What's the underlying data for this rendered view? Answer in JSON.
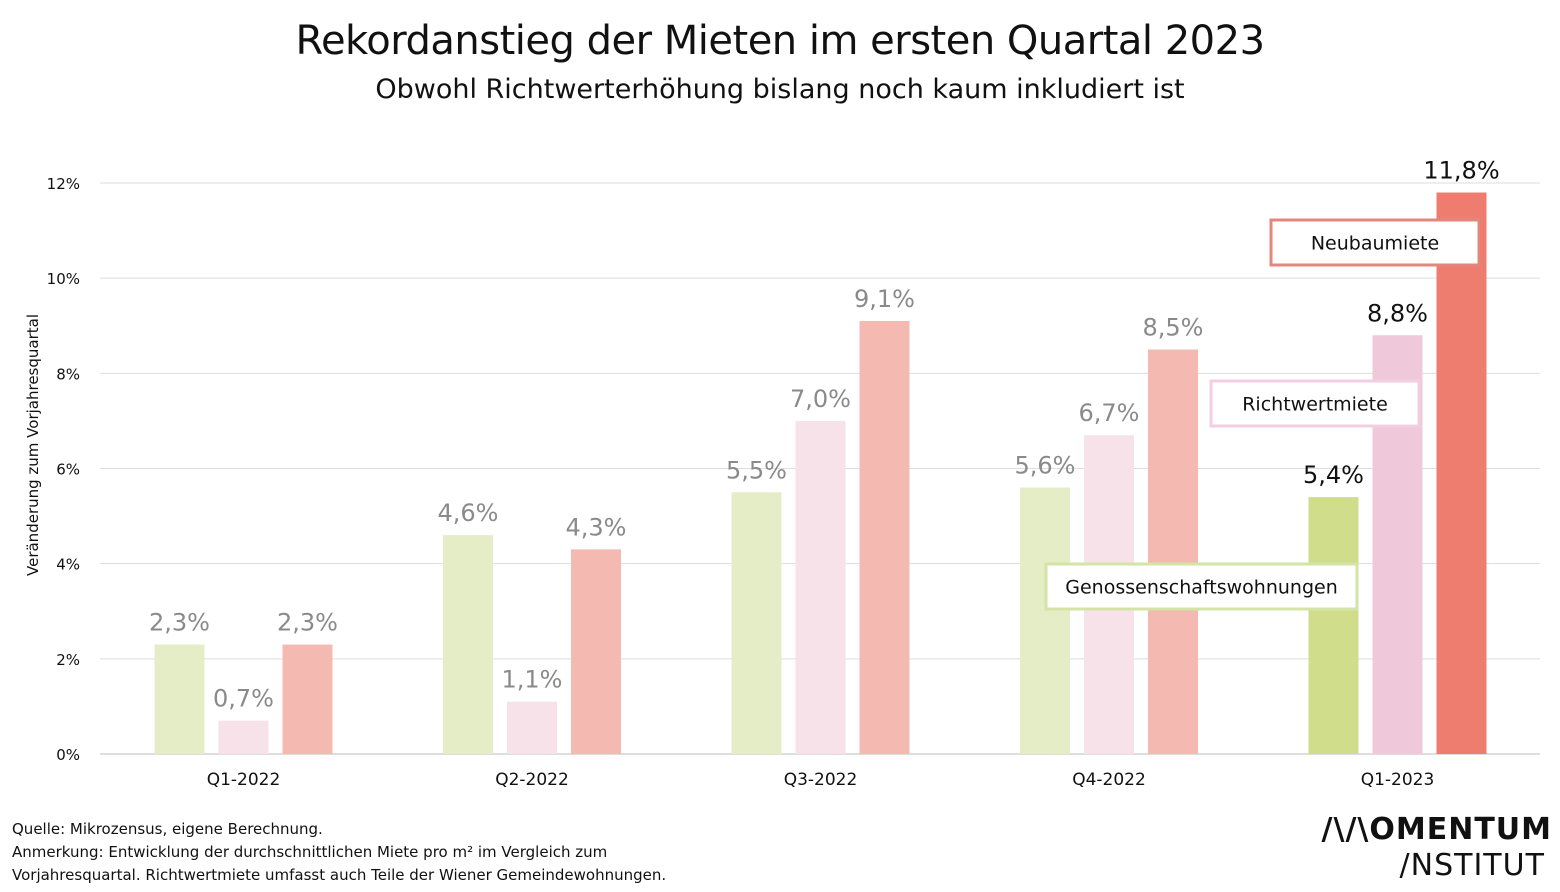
{
  "header": {
    "title": "Rekordanstieg der Mieten im ersten Quartal 2023",
    "subtitle": "Obwohl Richtwerterhöhung bislang noch kaum inkludiert ist"
  },
  "chart_data": {
    "type": "bar",
    "ylabel": "Veränderung zum Vorjahresquartal",
    "ylim": [
      0,
      12
    ],
    "yticks": [
      0,
      2,
      4,
      6,
      8,
      10,
      12
    ],
    "ytick_labels": [
      "0%",
      "2%",
      "4%",
      "6%",
      "8%",
      "10%",
      "12%"
    ],
    "grid": true,
    "categories": [
      "Q1-2022",
      "Q2-2022",
      "Q3-2022",
      "Q4-2022",
      "Q1-2023"
    ],
    "series": [
      {
        "name": "Genossenschaftswohnungen",
        "values": [
          2.3,
          4.6,
          5.5,
          5.6,
          5.4
        ],
        "labels": [
          "2,3%",
          "4,6%",
          "5,5%",
          "5,6%",
          "5,4%"
        ],
        "color_faded": "#e4edc6",
        "color_highlight": "#d0de8c"
      },
      {
        "name": "Richtwertmiete",
        "values": [
          0.7,
          1.1,
          7.0,
          6.7,
          8.8
        ],
        "labels": [
          "0,7%",
          "1,1%",
          "7,0%",
          "6,7%",
          "8,8%"
        ],
        "color_faded": "#f7e2ea",
        "color_highlight": "#efc8d9"
      },
      {
        "name": "Neubaumiete",
        "values": [
          2.3,
          4.3,
          9.1,
          8.5,
          11.8
        ],
        "labels": [
          "2,3%",
          "4,3%",
          "9,1%",
          "8,5%",
          "11,8%"
        ],
        "color_faded": "#f4b9b1",
        "color_highlight": "#ee7c6f"
      }
    ],
    "highlight_category": "Q1-2023",
    "label_color_faded": "#8a8a8a",
    "label_color_highlight": "#111111",
    "legend_placement": "inline callouts next to Q1-2023 bars",
    "legend": [
      {
        "text": "Neubaumiete",
        "border": "#e2877c"
      },
      {
        "text": "Richtwertmiete",
        "border": "#f2cfe0"
      },
      {
        "text": "Genossenschaftswohnungen",
        "border": "#d4e3a6"
      }
    ]
  },
  "footer": {
    "source": "Quelle: Mikrozensus, eigene Berechnung.",
    "note_line1": "Anmerkung: Entwicklung der durchschnittlichen Miete pro m² im Vergleich zum",
    "note_line2": "Vorjahresquartal. Richtwertmiete umfasst auch Teile der Wiener Gemeindewohnungen.",
    "brand_line1": "/\\/\\OMENTUM",
    "brand_line2": "/NSTITUT"
  }
}
